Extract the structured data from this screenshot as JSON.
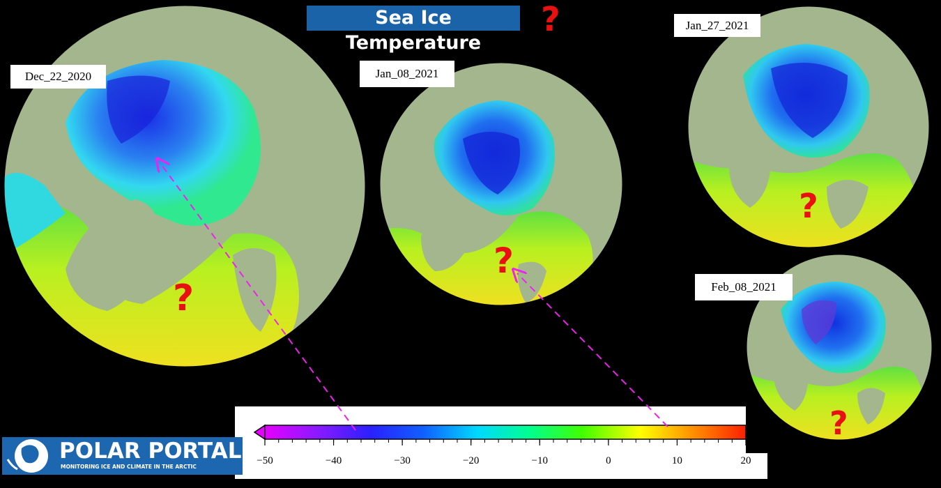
{
  "title": "Sea Ice Temperature",
  "question_mark": "?",
  "maps": [
    {
      "date": "Dec_22_2020"
    },
    {
      "date": "Jan_08_2021"
    },
    {
      "date": "Jan_27_2021"
    },
    {
      "date": "Feb_08_2021"
    }
  ],
  "colorbar": {
    "min": -50,
    "max": 20,
    "tick_labels": [
      "−50",
      "−40",
      "−30",
      "−20",
      "−10",
      "0",
      "10",
      "20"
    ],
    "colors": [
      "#e600ff",
      "#8a1aff",
      "#2a20ff",
      "#1060ff",
      "#00d8ff",
      "#00ff90",
      "#40ff00",
      "#ffff00",
      "#ff9000",
      "#ff2000"
    ]
  },
  "logo": {
    "name": "POLAR PORTAL",
    "tagline": "MONITORING ICE AND CLIMATE IN THE ARCTIC"
  },
  "colors": {
    "title_bg": "#1a63a8",
    "question_mark": "#e81010",
    "arrow": "#ee22ee",
    "land": "#a4b68e",
    "logo_bg": "#1d66b0"
  }
}
